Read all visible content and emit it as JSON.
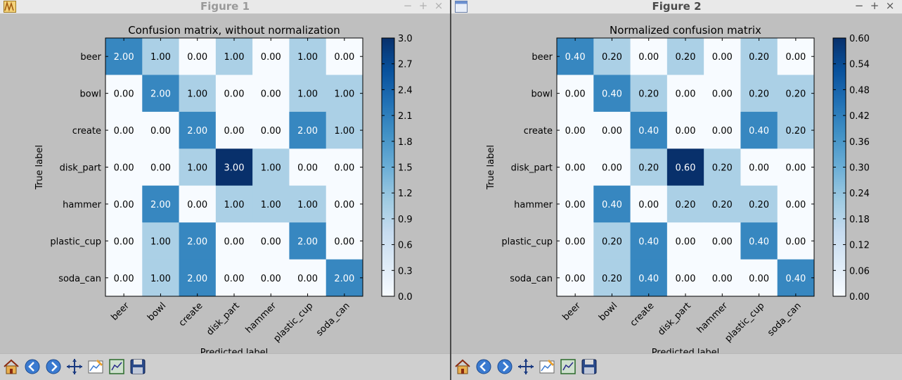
{
  "windows": [
    {
      "title": "Figure 1",
      "controls": [
        "−",
        "+",
        "×"
      ],
      "toolbar": [
        "home-icon",
        "back-icon",
        "forward-icon",
        "pan-icon",
        "configure-subplots-icon",
        "zoom-rect-icon",
        "save-icon"
      ]
    },
    {
      "title": "Figure 2",
      "controls": [
        "−",
        "+",
        "×"
      ],
      "toolbar": [
        "home-icon",
        "back-icon",
        "forward-icon",
        "pan-icon",
        "configure-subplots-icon",
        "zoom-rect-icon",
        "save-icon"
      ]
    }
  ],
  "chart_data": [
    {
      "type": "heatmap",
      "title": "Confusion matrix, without normalization",
      "xlabel": "Predicted label",
      "ylabel": "True label",
      "x_categories": [
        "beer",
        "bowl",
        "create",
        "disk_part",
        "hammer",
        "plastic_cup",
        "soda_can"
      ],
      "y_categories": [
        "beer",
        "bowl",
        "create",
        "disk_part",
        "hammer",
        "plastic_cup",
        "soda_can"
      ],
      "values": [
        [
          2,
          1,
          0,
          1,
          0,
          1,
          0
        ],
        [
          0,
          2,
          1,
          0,
          0,
          1,
          1
        ],
        [
          0,
          0,
          2,
          0,
          0,
          2,
          1
        ],
        [
          0,
          0,
          1,
          3,
          1,
          0,
          0
        ],
        [
          0,
          2,
          0,
          1,
          1,
          1,
          0
        ],
        [
          0,
          1,
          2,
          0,
          0,
          2,
          0
        ],
        [
          0,
          1,
          2,
          0,
          0,
          0,
          2
        ]
      ],
      "value_format": "2",
      "colormap": "Blues",
      "vmin": 0,
      "vmax": 3.0,
      "colorbar_ticks": [
        "0.0",
        "0.3",
        "0.6",
        "0.9",
        "1.2",
        "1.5",
        "1.8",
        "2.1",
        "2.4",
        "2.7",
        "3.0"
      ]
    },
    {
      "type": "heatmap",
      "title": "Normalized confusion matrix",
      "xlabel": "Predicted label",
      "ylabel": "True label",
      "x_categories": [
        "beer",
        "bowl",
        "create",
        "disk_part",
        "hammer",
        "plastic_cup",
        "soda_can"
      ],
      "y_categories": [
        "beer",
        "bowl",
        "create",
        "disk_part",
        "hammer",
        "plastic_cup",
        "soda_can"
      ],
      "values": [
        [
          0.4,
          0.2,
          0,
          0.2,
          0,
          0.2,
          0
        ],
        [
          0,
          0.4,
          0.2,
          0,
          0,
          0.2,
          0.2
        ],
        [
          0,
          0,
          0.4,
          0,
          0,
          0.4,
          0.2
        ],
        [
          0,
          0,
          0.2,
          0.6,
          0.2,
          0,
          0
        ],
        [
          0,
          0.4,
          0,
          0.2,
          0.2,
          0.2,
          0
        ],
        [
          0,
          0.2,
          0.4,
          0,
          0,
          0.4,
          0
        ],
        [
          0,
          0.2,
          0.4,
          0,
          0,
          0,
          0.4
        ]
      ],
      "value_format": "2",
      "colormap": "Blues",
      "vmin": 0,
      "vmax": 0.6,
      "colorbar_ticks": [
        "0.00",
        "0.06",
        "0.12",
        "0.18",
        "0.24",
        "0.30",
        "0.36",
        "0.42",
        "0.48",
        "0.54",
        "0.60"
      ]
    }
  ]
}
